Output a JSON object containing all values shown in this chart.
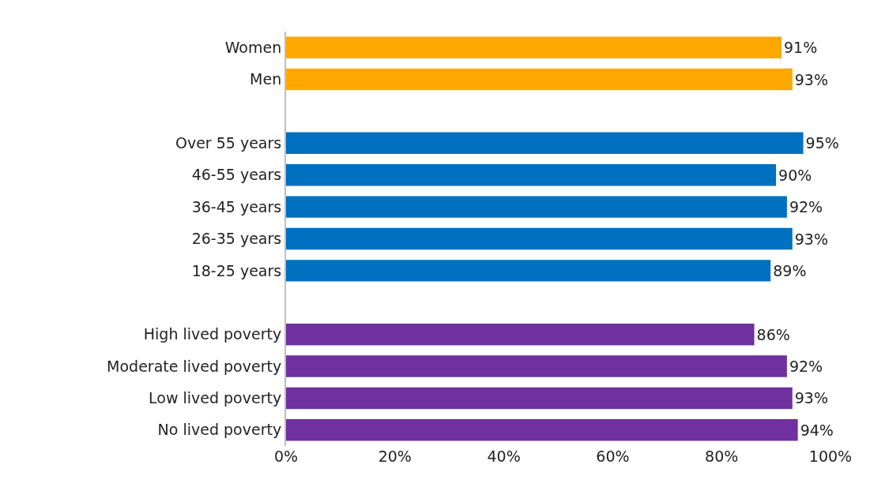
{
  "chart_data": {
    "type": "bar",
    "orientation": "horizontal",
    "categories": [
      "Women",
      "Men",
      null,
      "Over 55 years",
      "46-55 years",
      "36-45 years",
      "26-35 years",
      "18-25 years",
      null,
      "High lived poverty",
      "Moderate lived poverty",
      "Low lived poverty",
      "No lived poverty"
    ],
    "values": [
      91,
      93,
      null,
      95,
      90,
      92,
      93,
      89,
      null,
      86,
      92,
      93,
      94
    ],
    "colors": [
      "#ffa800",
      "#ffa800",
      null,
      "#0070c0",
      "#0070c0",
      "#0070c0",
      "#0070c0",
      "#0070c0",
      null,
      "#7030a0",
      "#7030a0",
      "#7030a0",
      "#7030a0"
    ],
    "value_labels": [
      "91%",
      "93%",
      null,
      "95%",
      "90%",
      "92%",
      "93%",
      "89%",
      null,
      "86%",
      "92%",
      "93%",
      "94%"
    ],
    "xlim": [
      0,
      100
    ],
    "xticks": [
      {
        "value": 0,
        "label": "0%"
      },
      {
        "value": 20,
        "label": "20%"
      },
      {
        "value": 40,
        "label": "40%"
      },
      {
        "value": 60,
        "label": "60%"
      },
      {
        "value": 80,
        "label": "80%"
      },
      {
        "value": 100,
        "label": "100%"
      }
    ],
    "grid": false
  }
}
